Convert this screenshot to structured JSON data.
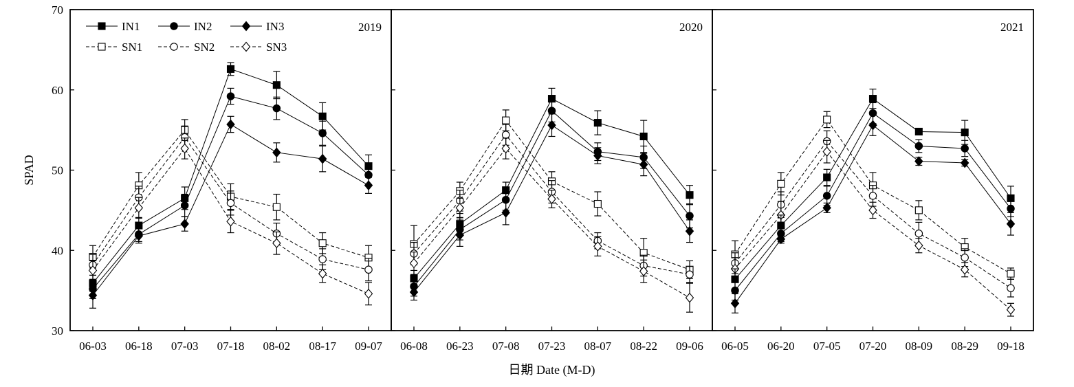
{
  "chart_data": {
    "type": "line",
    "ylabel": "SPAD",
    "xlabel": "日期 Date (M-D)",
    "ylim": [
      30,
      70
    ],
    "yticks": [
      30,
      40,
      50,
      60,
      70
    ],
    "legend": {
      "placement": "top-left",
      "entries": [
        {
          "label": "IN1",
          "style": "solid",
          "marker": "filled-square"
        },
        {
          "label": "IN2",
          "style": "solid",
          "marker": "filled-circle"
        },
        {
          "label": "IN3",
          "style": "solid",
          "marker": "filled-diamond"
        },
        {
          "label": "SN1",
          "style": "dashed",
          "marker": "open-square"
        },
        {
          "label": "SN2",
          "style": "dashed",
          "marker": "open-circle"
        },
        {
          "label": "SN3",
          "style": "dashed",
          "marker": "open-diamond"
        }
      ]
    },
    "panels": [
      {
        "year": "2019",
        "categories": [
          "06-03",
          "06-18",
          "07-03",
          "07-18",
          "08-02",
          "08-17",
          "09-07"
        ],
        "series": [
          {
            "name": "IN1",
            "values": [
              35.9,
              43.1,
              46.5,
              62.6,
              60.6,
              56.7,
              50.5
            ],
            "errors": [
              1.0,
              1.0,
              1.4,
              0.8,
              1.7,
              1.7,
              1.4
            ]
          },
          {
            "name": "IN2",
            "values": [
              35.2,
              42.0,
              45.6,
              59.2,
              57.7,
              54.6,
              49.4
            ],
            "errors": [
              1.2,
              0.9,
              1.4,
              1.0,
              1.4,
              1.5,
              1.2
            ]
          },
          {
            "name": "IN3",
            "values": [
              34.4,
              41.8,
              43.3,
              55.7,
              52.2,
              51.4,
              48.1
            ],
            "errors": [
              1.6,
              0.9,
              0.9,
              1.0,
              1.2,
              1.6,
              1.0
            ]
          },
          {
            "name": "SN1",
            "values": [
              39.2,
              48.1,
              55.0,
              46.7,
              45.4,
              40.9,
              39.1
            ],
            "errors": [
              1.4,
              1.6,
              1.3,
              1.6,
              1.6,
              1.3,
              1.5
            ]
          },
          {
            "name": "SN2",
            "values": [
              38.2,
              46.6,
              54.1,
              45.9,
              42.1,
              38.9,
              37.6
            ],
            "errors": [
              1.3,
              1.4,
              1.4,
              1.5,
              1.3,
              1.3,
              1.4
            ]
          },
          {
            "name": "SN3",
            "values": [
              37.5,
              45.3,
              52.7,
              43.6,
              40.9,
              37.1,
              34.6
            ],
            "errors": [
              1.2,
              1.3,
              1.3,
              1.4,
              1.4,
              1.1,
              1.4
            ]
          }
        ]
      },
      {
        "year": "2020",
        "categories": [
          "06-08",
          "06-23",
          "07-08",
          "07-23",
          "08-07",
          "08-22",
          "09-06"
        ],
        "series": [
          {
            "name": "IN1",
            "values": [
              36.5,
              43.3,
              47.5,
              58.9,
              55.9,
              54.2,
              46.9
            ],
            "errors": [
              1.0,
              1.3,
              1.0,
              1.3,
              1.5,
              2.0,
              1.2
            ]
          },
          {
            "name": "IN2",
            "values": [
              35.5,
              42.6,
              46.3,
              57.4,
              52.3,
              51.6,
              44.3
            ],
            "errors": [
              1.2,
              1.3,
              1.3,
              1.4,
              1.1,
              1.4,
              1.5
            ]
          },
          {
            "name": "IN3",
            "values": [
              34.8,
              41.9,
              44.7,
              55.6,
              51.8,
              50.7,
              42.4
            ],
            "errors": [
              1.0,
              1.4,
              1.5,
              1.4,
              1.0,
              1.4,
              1.4
            ]
          },
          {
            "name": "SN1",
            "values": [
              40.8,
              47.4,
              56.2,
              48.6,
              45.8,
              39.7,
              37.6
            ],
            "errors": [
              2.3,
              1.1,
              1.3,
              1.2,
              1.5,
              1.8,
              1.1
            ]
          },
          {
            "name": "SN2",
            "values": [
              39.6,
              46.2,
              54.4,
              47.3,
              41.2,
              38.1,
              37.0
            ],
            "errors": [
              1.4,
              1.3,
              1.3,
              1.4,
              1.0,
              1.3,
              1.0
            ]
          },
          {
            "name": "SN3",
            "values": [
              38.4,
              45.3,
              52.7,
              46.4,
              40.5,
              37.4,
              34.1
            ],
            "errors": [
              1.4,
              1.2,
              1.3,
              1.1,
              1.2,
              1.4,
              1.8
            ]
          }
        ]
      },
      {
        "year": "2021",
        "categories": [
          "06-05",
          "06-20",
          "07-05",
          "07-20",
          "08-09",
          "08-29",
          "09-18"
        ],
        "series": [
          {
            "name": "IN1",
            "values": [
              36.4,
              43.1,
              49.1,
              58.9,
              54.8,
              54.7,
              46.5
            ],
            "errors": [
              1.3,
              1.3,
              1.0,
              1.2,
              0.4,
              1.5,
              1.5
            ]
          },
          {
            "name": "IN2",
            "values": [
              35.0,
              42.1,
              46.8,
              57.1,
              53.0,
              52.7,
              45.2
            ],
            "errors": [
              1.2,
              1.0,
              1.2,
              1.3,
              0.8,
              1.0,
              1.0
            ]
          },
          {
            "name": "IN3",
            "values": [
              33.4,
              41.4,
              45.3,
              55.6,
              51.1,
              50.9,
              43.3
            ],
            "errors": [
              1.2,
              0.5,
              0.6,
              1.3,
              0.5,
              0.4,
              1.4
            ]
          },
          {
            "name": "SN1",
            "values": [
              39.5,
              48.3,
              56.3,
              48.1,
              45.0,
              40.4,
              37.1
            ],
            "errors": [
              1.7,
              1.4,
              1.0,
              1.6,
              1.2,
              1.1,
              0.7
            ]
          },
          {
            "name": "SN2",
            "values": [
              38.4,
              45.7,
              53.6,
              46.8,
              42.1,
              39.1,
              35.3
            ],
            "errors": [
              1.3,
              1.6,
              1.3,
              1.3,
              1.4,
              1.1,
              1.1
            ]
          },
          {
            "name": "SN3",
            "values": [
              37.7,
              44.4,
              52.3,
              45.0,
              40.6,
              37.6,
              32.6
            ],
            "errors": [
              1.4,
              1.7,
              1.4,
              1.0,
              0.9,
              0.9,
              0.8
            ]
          }
        ]
      }
    ]
  }
}
